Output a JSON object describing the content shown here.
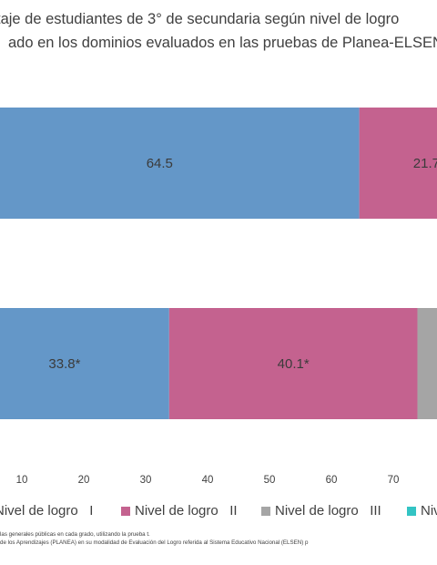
{
  "title": {
    "line1": "taje de estudiantes de 3° de secundaria según nivel de logro",
    "line2": "ado en los dominios evaluados en las pruebas de Planea-ELSEN"
  },
  "chart_data": {
    "type": "bar",
    "orientation": "horizontal",
    "stacked": true,
    "categories": [
      "",
      ""
    ],
    "series": [
      {
        "name": "Nivel de logro   I",
        "color": "#6497c8",
        "values": [
          64.5,
          33.8
        ],
        "labels": [
          "64.5",
          "33.8*"
        ]
      },
      {
        "name": "Nivel de logro   II",
        "color": "#c4628f",
        "values": [
          21.7,
          40.1
        ],
        "labels": [
          "21.7",
          "40.1*"
        ]
      },
      {
        "name": "Nivel de logro   III",
        "color": "#a5a5a5",
        "values": [
          null,
          null
        ],
        "labels": [
          "",
          ""
        ]
      },
      {
        "name": "Niv",
        "color": "#33c4c4",
        "values": [
          null,
          null
        ],
        "labels": [
          "",
          ""
        ]
      }
    ],
    "xticks": [
      10,
      20,
      30,
      40,
      50,
      60,
      70
    ],
    "xlim_visible": [
      8.5,
      78
    ],
    "grid": false,
    "legend_position": "bottom"
  },
  "notes": {
    "line1": "las generales públicas en cada grado, utilizando la prueba t.",
    "line2": "de los Aprendizajes (PLANEA) en su modalidad de Evaluación del Logro referida al Sistema Educativo Nacional (ELSEN) p"
  }
}
